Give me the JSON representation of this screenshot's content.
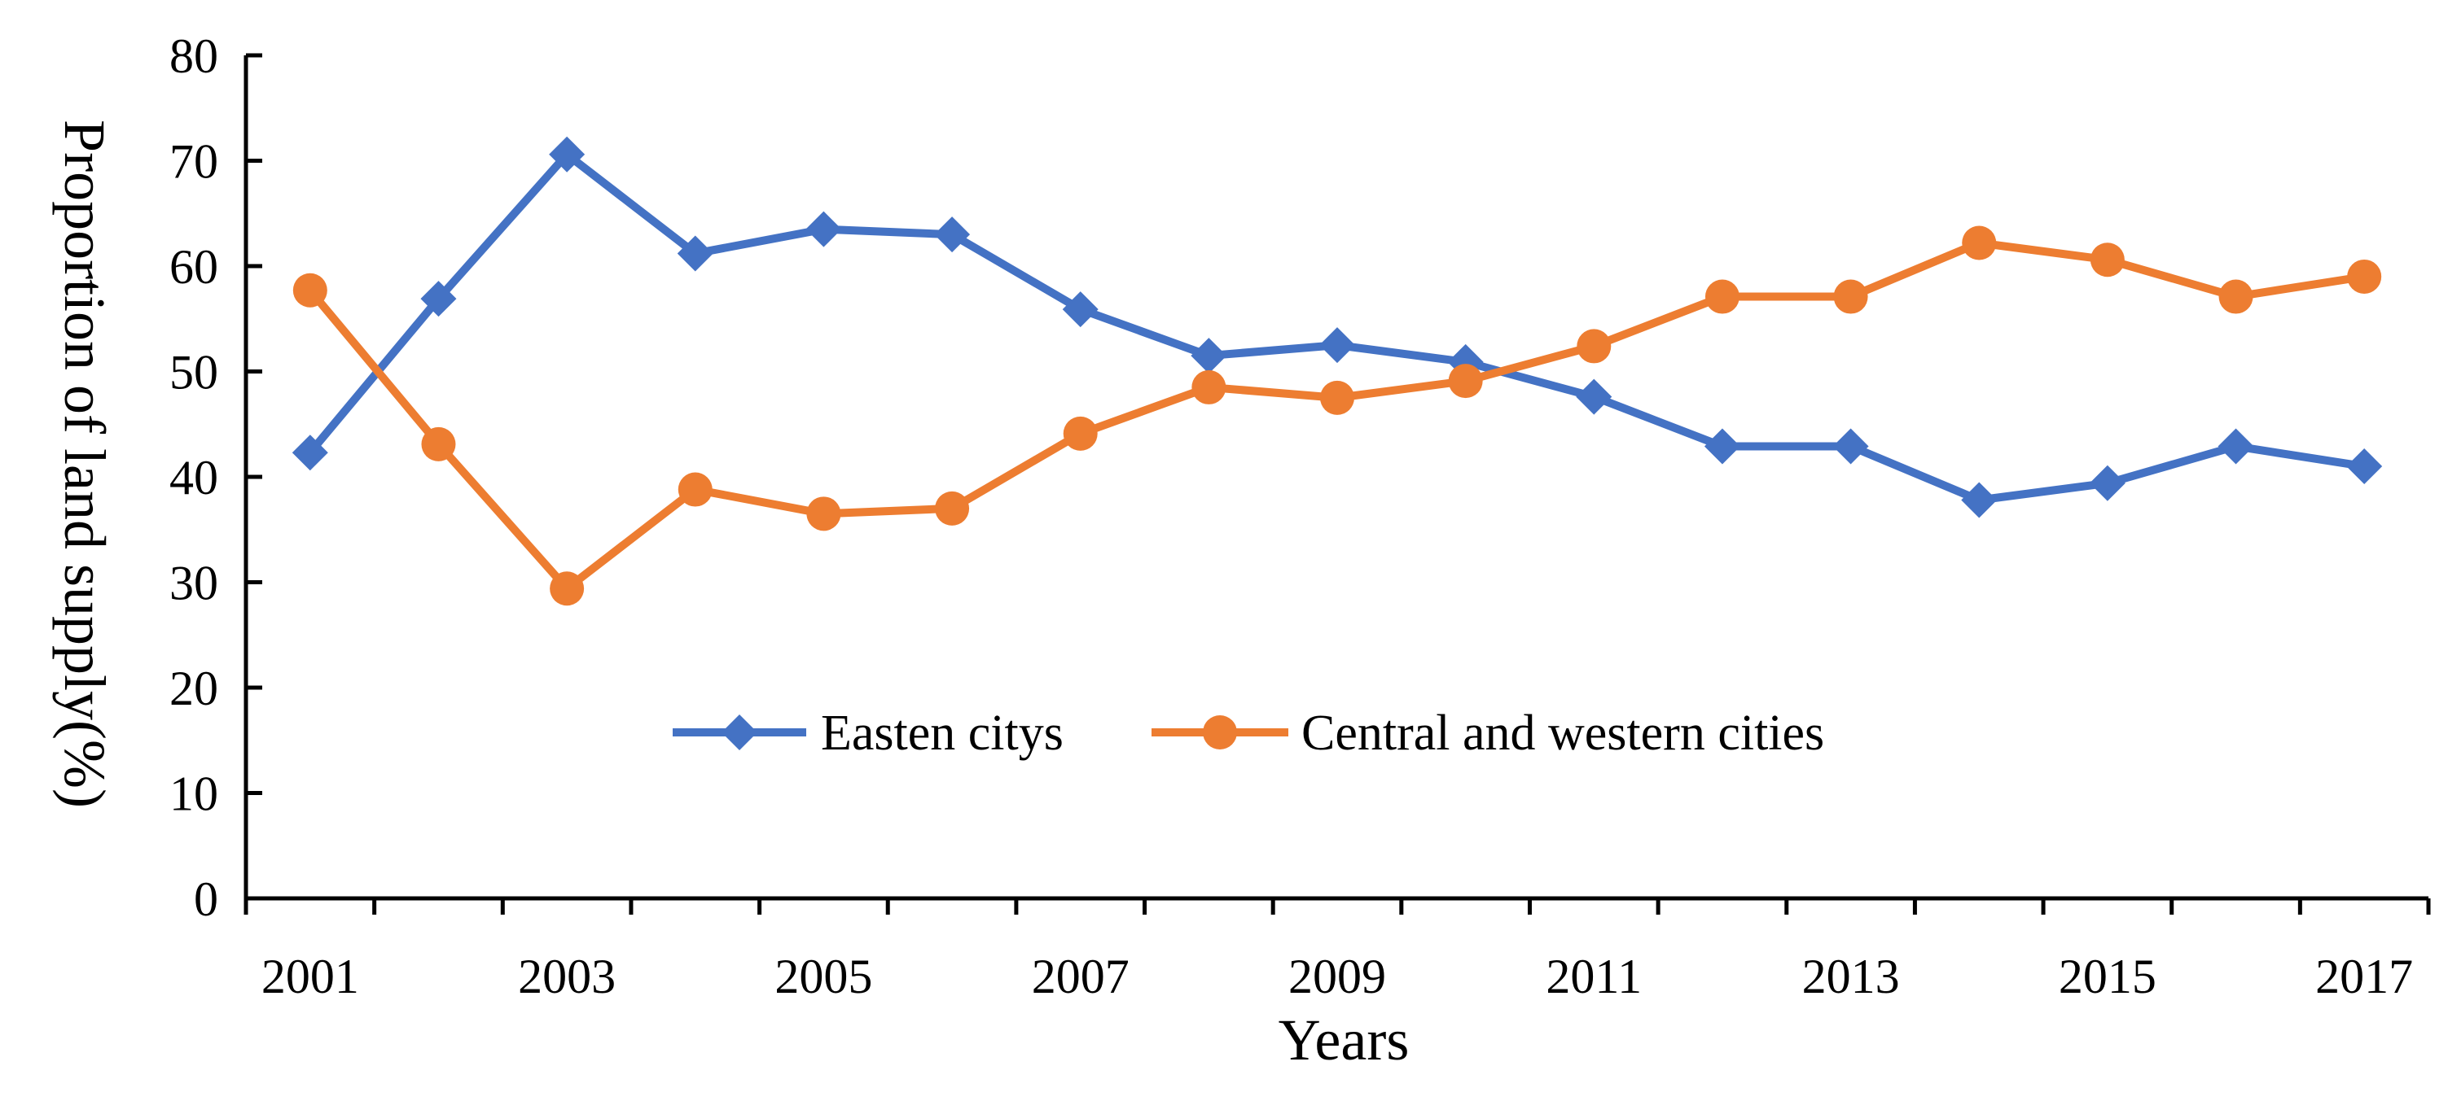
{
  "chart_data": {
    "type": "line",
    "title": "",
    "xlabel": "Years",
    "ylabel": "Proportion of land supply(%)",
    "x": [
      2001,
      2002,
      2003,
      2004,
      2005,
      2006,
      2007,
      2008,
      2009,
      2010,
      2011,
      2012,
      2013,
      2014,
      2015,
      2016,
      2017
    ],
    "x_tick_labels": [
      "2001",
      "2003",
      "2005",
      "2007",
      "2009",
      "2011",
      "2013",
      "2015",
      "2017"
    ],
    "ylim": [
      0,
      80
    ],
    "y_ticks": [
      0,
      10,
      20,
      30,
      40,
      50,
      60,
      70,
      80
    ],
    "y_tick_labels": [
      "0",
      "10",
      "20",
      "30",
      "40",
      "50",
      "60",
      "70",
      "80"
    ],
    "grid": false,
    "legend_position": "lower-center",
    "series": [
      {
        "name": "Easten citys",
        "marker": "diamond",
        "color": "#4472C4",
        "values": [
          42.3,
          56.9,
          70.6,
          61.2,
          63.5,
          63.0,
          55.9,
          51.5,
          52.5,
          50.9,
          47.6,
          42.9,
          42.9,
          37.8,
          39.4,
          42.9,
          41.0
        ]
      },
      {
        "name": "Central and western cities",
        "marker": "circle",
        "color": "#ED7D31",
        "values": [
          57.7,
          43.1,
          29.4,
          38.8,
          36.5,
          37.0,
          44.1,
          48.5,
          47.5,
          49.1,
          52.4,
          57.1,
          57.1,
          62.2,
          60.6,
          57.1,
          59.0
        ]
      }
    ]
  }
}
